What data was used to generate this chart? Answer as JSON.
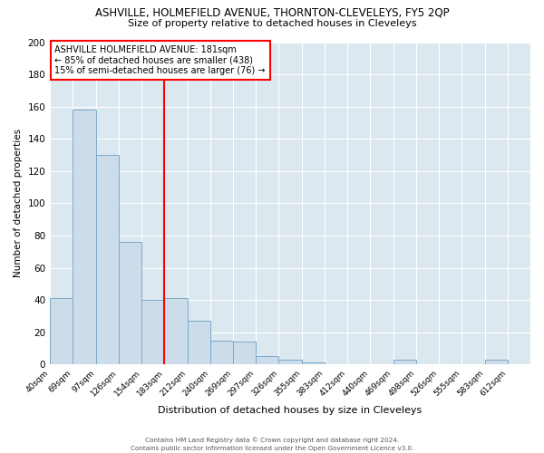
{
  "title": "ASHVILLE, HOLMEFIELD AVENUE, THORNTON-CLEVELEYS, FY5 2QP",
  "subtitle": "Size of property relative to detached houses in Cleveleys",
  "xlabel": "Distribution of detached houses by size in Cleveleys",
  "ylabel": "Number of detached properties",
  "bar_color": "#cddceb",
  "bar_edge_color": "#7aabc8",
  "vline_x": 5,
  "vline_color": "red",
  "annotation_line1": "ASHVILLE HOLMEFIELD AVENUE: 181sqm",
  "annotation_line2": "← 85% of detached houses are smaller (438)",
  "annotation_line3": "15% of semi-detached houses are larger (76) →",
  "background_color": "#ffffff",
  "plot_bg_color": "#dce8f0",
  "ylim": [
    0,
    200
  ],
  "yticks": [
    0,
    20,
    40,
    60,
    80,
    100,
    120,
    140,
    160,
    180,
    200
  ],
  "categories": [
    "40sqm",
    "69sqm",
    "97sqm",
    "126sqm",
    "154sqm",
    "183sqm",
    "212sqm",
    "240sqm",
    "269sqm",
    "297sqm",
    "326sqm",
    "355sqm",
    "383sqm",
    "412sqm",
    "440sqm",
    "469sqm",
    "498sqm",
    "526sqm",
    "555sqm",
    "583sqm",
    "612sqm"
  ],
  "heights": [
    41,
    158,
    130,
    76,
    40,
    41,
    27,
    15,
    14,
    5,
    3,
    1,
    0,
    0,
    0,
    3,
    0,
    0,
    0,
    3,
    0
  ],
  "footer_line1": "Contains HM Land Registry data © Crown copyright and database right 2024.",
  "footer_line2": "Contains public sector information licensed under the Open Government Licence v3.0."
}
